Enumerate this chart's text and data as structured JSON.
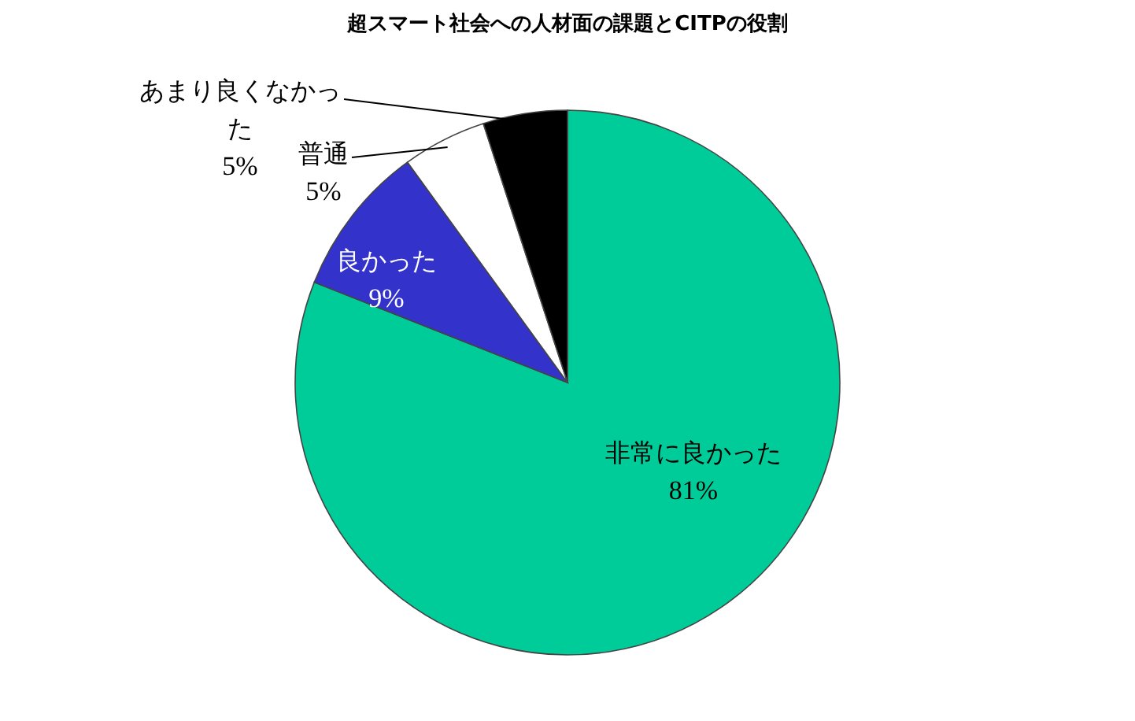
{
  "chart_data": {
    "type": "pie",
    "title": "超スマート社会への人材面の課題とCITPの役割",
    "categories": [
      "非常に良かった",
      "良かった",
      "普通",
      "あまり良くなかった"
    ],
    "values": [
      81,
      9,
      5,
      5
    ],
    "colors": [
      "#00cc99",
      "#3333cc",
      "#ffffff",
      "#000000"
    ],
    "value_labels": [
      "81%",
      "9%",
      "5%",
      "5%"
    ]
  }
}
